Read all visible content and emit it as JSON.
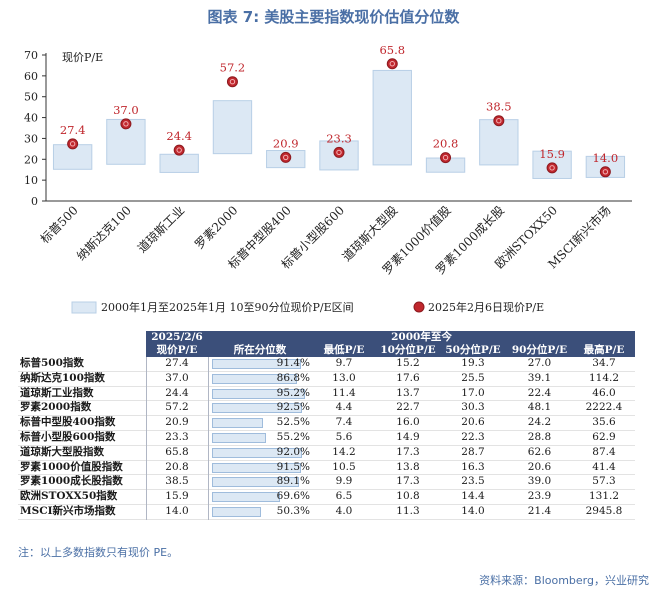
{
  "title": "图表 7:  美股主要指数现价估值分位数",
  "chart_data": {
    "type": "bar",
    "ylabel": "现价P/E",
    "ylim": [
      0,
      70
    ],
    "yticks": [
      0,
      10,
      20,
      30,
      40,
      50,
      60,
      70
    ],
    "categories": [
      "标普500",
      "纳斯达克100",
      "道琼斯工业",
      "罗素2000",
      "标普中型股400",
      "标普小型股600",
      "道琼斯大型股",
      "罗素1000价值股",
      "罗素1000成长股",
      "欧洲STOXX50",
      "MSCI新兴市场"
    ],
    "series": [
      {
        "name": "2000年1月至2025年1月 10至90分位现价P/E区间",
        "low": [
          15.2,
          17.6,
          13.7,
          22.7,
          16.0,
          14.9,
          17.3,
          13.8,
          17.3,
          10.8,
          11.3
        ],
        "high": [
          27.0,
          39.1,
          22.4,
          48.1,
          24.2,
          28.8,
          62.6,
          20.6,
          39.0,
          23.9,
          21.4
        ]
      },
      {
        "name": "2025年2月6日现价P/E",
        "values": [
          27.4,
          37.0,
          24.4,
          57.2,
          20.9,
          23.3,
          65.8,
          20.8,
          38.5,
          15.9,
          14.0
        ]
      }
    ],
    "colors": {
      "band_fill": "#dce8f4",
      "band_stroke": "#b8cfe6",
      "dot_fill": "#c0272d",
      "label": "#c0272d"
    }
  },
  "table": {
    "header_col1_line1": "2025/2/6",
    "header_col1_line2": "现价P/E",
    "header_group": "2000年至今",
    "subheaders": [
      "所在分位数",
      "最低P/E",
      "10分位P/E",
      "50分位P/E",
      "90分位P/E",
      "最高P/E"
    ],
    "rows": [
      {
        "name": "标普500指数",
        "pe": "27.4",
        "pct": "91.4%",
        "pct_value": 91.4,
        "min": "9.7",
        "p10": "15.2",
        "p50": "19.3",
        "p90": "27.0",
        "max": "34.7"
      },
      {
        "name": "纳斯达克100指数",
        "pe": "37.0",
        "pct": "86.8%",
        "pct_value": 86.8,
        "min": "13.0",
        "p10": "17.6",
        "p50": "25.5",
        "p90": "39.1",
        "max": "114.2"
      },
      {
        "name": "道琼斯工业指数",
        "pe": "24.4",
        "pct": "95.2%",
        "pct_value": 95.2,
        "min": "11.4",
        "p10": "13.7",
        "p50": "17.0",
        "p90": "22.4",
        "max": "46.0"
      },
      {
        "name": "罗素2000指数",
        "pe": "57.2",
        "pct": "92.5%",
        "pct_value": 92.5,
        "min": "4.4",
        "p10": "22.7",
        "p50": "30.3",
        "p90": "48.1",
        "max": "2222.4"
      },
      {
        "name": "标普中型股400指数",
        "pe": "20.9",
        "pct": "52.5%",
        "pct_value": 52.5,
        "min": "7.4",
        "p10": "16.0",
        "p50": "20.6",
        "p90": "24.2",
        "max": "35.6"
      },
      {
        "name": "标普小型股600指数",
        "pe": "23.3",
        "pct": "55.2%",
        "pct_value": 55.2,
        "min": "5.6",
        "p10": "14.9",
        "p50": "22.3",
        "p90": "28.8",
        "max": "62.9"
      },
      {
        "name": "道琼斯大型股指数",
        "pe": "65.8",
        "pct": "92.0%",
        "pct_value": 92.0,
        "min": "14.2",
        "p10": "17.3",
        "p50": "28.7",
        "p90": "62.6",
        "max": "87.4"
      },
      {
        "name": "罗素1000价值股指数",
        "pe": "20.8",
        "pct": "91.5%",
        "pct_value": 91.5,
        "min": "10.5",
        "p10": "13.8",
        "p50": "16.3",
        "p90": "20.6",
        "max": "41.4"
      },
      {
        "name": "罗素1000成长股指数",
        "pe": "38.5",
        "pct": "89.1%",
        "pct_value": 89.1,
        "min": "9.9",
        "p10": "17.3",
        "p50": "23.5",
        "p90": "39.0",
        "max": "57.3"
      },
      {
        "name": "欧洲STOXX50指数",
        "pe": "15.9",
        "pct": "69.6%",
        "pct_value": 69.6,
        "min": "6.5",
        "p10": "10.8",
        "p50": "14.4",
        "p90": "23.9",
        "max": "131.2"
      },
      {
        "name": "MSCI新兴市场指数",
        "pe": "14.0",
        "pct": "50.3%",
        "pct_value": 50.3,
        "min": "4.0",
        "p10": "11.3",
        "p50": "14.0",
        "p90": "21.4",
        "max": "2945.8"
      }
    ]
  },
  "note": "注：以上多数指数只有现价 PE。",
  "source": "资料来源：Bloomberg，兴业研究"
}
